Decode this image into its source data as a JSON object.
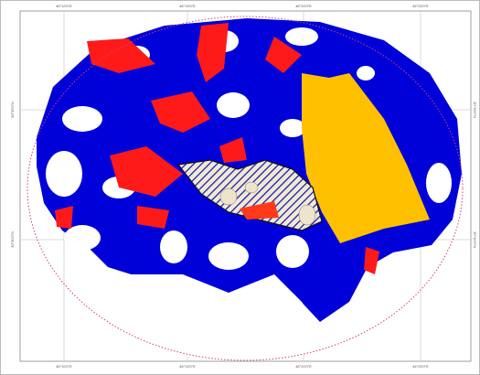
{
  "map": {
    "top_ticks": [
      "46°10'0\"E",
      "46°15'0\"E",
      "46°20'0\"E",
      "46°25'0\"E"
    ],
    "bottom_ticks": [
      "46°10'0\"E",
      "46°15'0\"E",
      "46°20'0\"E",
      "46°25'0\"E"
    ],
    "left_ticks": [
      "30°35'0\"N",
      "30°30'0\"N"
    ],
    "right_ticks": [
      "30°35'0\"N",
      "30°30'0\"N"
    ]
  }
}
